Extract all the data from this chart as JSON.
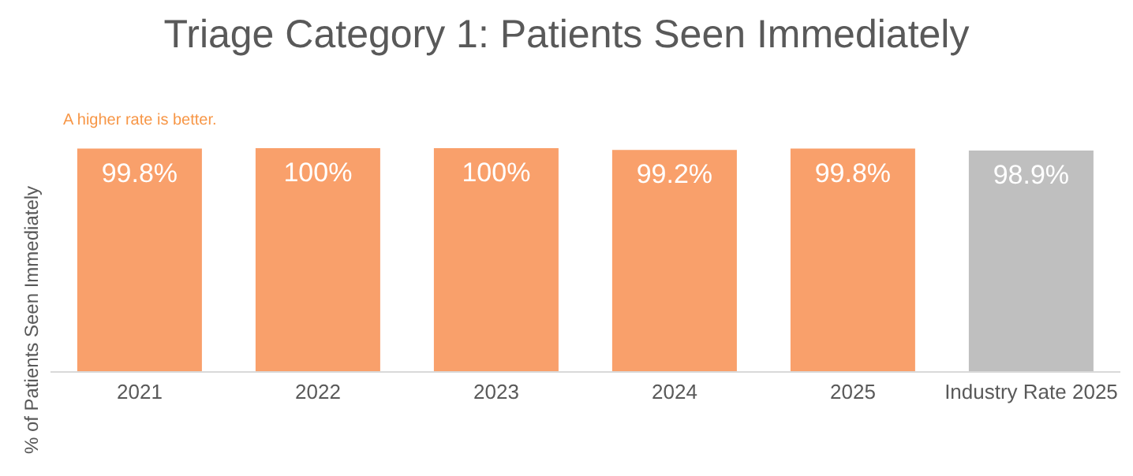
{
  "chart_data": {
    "type": "bar",
    "title": "Triage Category 1: Patients Seen Immediately",
    "ylabel": "% of Patients Seen Immediately",
    "annotations": [
      "A higher rate is better."
    ],
    "categories": [
      "2021",
      "2022",
      "2023",
      "2024",
      "2025",
      "Industry Rate 2025"
    ],
    "values": [
      99.8,
      100,
      100,
      99.2,
      99.8,
      98.9
    ],
    "colors": [
      "#f9a06b",
      "#f9a06b",
      "#f9a06b",
      "#f9a06b",
      "#f9a06b",
      "#bfbfbf"
    ],
    "value_labels": [
      "99.8%",
      "100%",
      "100%",
      "99.2%",
      "99.8%",
      "98.9%"
    ],
    "ylim": [
      0,
      100
    ],
    "tick_labels": "x",
    "grid": false,
    "legend": false
  }
}
